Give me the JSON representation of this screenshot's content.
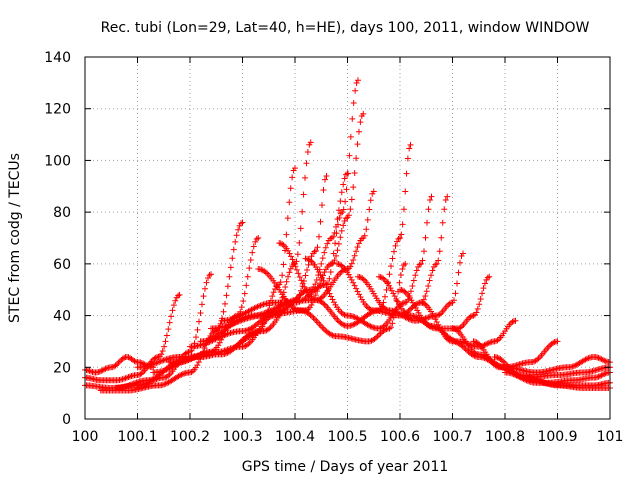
{
  "chart_data": {
    "type": "scatter",
    "title": "Rec. tubi (Lon=29, Lat=40, h=HE), days 100, 2011, window WINDOW",
    "xlabel": "GPS time / Days of year 2011",
    "ylabel": "STEC from codg / TECUs",
    "xlim": [
      100,
      101
    ],
    "ylim": [
      0,
      140
    ],
    "x_ticks": [
      "100",
      "100.1",
      "100.2",
      "100.3",
      "100.4",
      "100.5",
      "100.6",
      "100.7",
      "100.8",
      "100.9",
      "101"
    ],
    "y_ticks": [
      "0",
      "20",
      "40",
      "60",
      "80",
      "100",
      "120",
      "140"
    ],
    "marker": "+",
    "color": "#ff0000",
    "grid": true,
    "series": [
      {
        "x": [
          100.0,
          100.02,
          100.05,
          100.08,
          100.1,
          100.13
        ],
        "y": [
          19,
          18,
          20,
          24,
          22,
          20
        ]
      },
      {
        "x": [
          100.0,
          100.03,
          100.06,
          100.1,
          100.14,
          100.18
        ],
        "y": [
          16,
          15,
          15,
          17,
          24,
          48
        ]
      },
      {
        "x": [
          100.0,
          100.05,
          100.1,
          100.15,
          100.2,
          100.24
        ],
        "y": [
          13,
          12,
          13,
          16,
          26,
          56
        ]
      },
      {
        "x": [
          100.03,
          100.08,
          100.14,
          100.2,
          100.25,
          100.3
        ],
        "y": [
          11,
          11,
          13,
          18,
          34,
          76
        ]
      },
      {
        "x": [
          100.06,
          100.12,
          100.18,
          100.24,
          100.29,
          100.33
        ],
        "y": [
          12,
          15,
          22,
          26,
          40,
          70
        ]
      },
      {
        "x": [
          100.1,
          100.18,
          100.26,
          100.33,
          100.37,
          100.4
        ],
        "y": [
          20,
          24,
          25,
          34,
          52,
          97
        ]
      },
      {
        "x": [
          100.13,
          100.22,
          100.3,
          100.36,
          100.4,
          100.43
        ],
        "y": [
          18,
          24,
          28,
          40,
          60,
          107
        ]
      },
      {
        "x": [
          100.16,
          100.26,
          100.34,
          100.4,
          100.44,
          100.46
        ],
        "y": [
          22,
          26,
          34,
          46,
          65,
          94
        ]
      },
      {
        "x": [
          100.2,
          100.3,
          100.37,
          100.43,
          100.47,
          100.5
        ],
        "y": [
          28,
          34,
          42,
          50,
          70,
          95
        ]
      },
      {
        "x": [
          100.22,
          100.32,
          100.4,
          100.46,
          100.49,
          100.52
        ],
        "y": [
          30,
          40,
          45,
          52,
          80,
          131
        ]
      },
      {
        "x": [
          100.24,
          100.34,
          100.42,
          100.47,
          100.5,
          100.53
        ],
        "y": [
          35,
          40,
          42,
          60,
          78,
          118
        ]
      },
      {
        "x": [
          100.26,
          100.36,
          100.44,
          100.5,
          100.53,
          100.55
        ],
        "y": [
          38,
          45,
          46,
          58,
          70,
          88
        ]
      },
      {
        "x": [
          100.37,
          100.44,
          100.5,
          100.56,
          100.6,
          100.62
        ],
        "y": [
          68,
          46,
          36,
          42,
          70,
          106
        ]
      },
      {
        "x": [
          100.42,
          100.5,
          100.56,
          100.61,
          100.64,
          100.66
        ],
        "y": [
          62,
          40,
          35,
          45,
          60,
          86
        ]
      },
      {
        "x": [
          100.33,
          100.41,
          100.48,
          100.54,
          100.58,
          100.61
        ],
        "y": [
          58,
          42,
          32,
          30,
          35,
          60
        ]
      },
      {
        "x": [
          100.48,
          100.55,
          100.6,
          100.64,
          100.67,
          100.69
        ],
        "y": [
          60,
          42,
          40,
          45,
          60,
          86
        ]
      },
      {
        "x": [
          100.52,
          100.58,
          100.63,
          100.67,
          100.7,
          100.72
        ],
        "y": [
          55,
          42,
          38,
          40,
          45,
          64
        ]
      },
      {
        "x": [
          100.56,
          100.62,
          100.67,
          100.71,
          100.74,
          100.77
        ],
        "y": [
          55,
          40,
          35,
          35,
          40,
          55
        ]
      },
      {
        "x": [
          100.6,
          100.66,
          100.71,
          100.75,
          100.78,
          100.82
        ],
        "y": [
          50,
          36,
          30,
          28,
          30,
          38
        ]
      },
      {
        "x": [
          100.64,
          100.7,
          100.75,
          100.8,
          100.85,
          100.9
        ],
        "y": [
          45,
          30,
          24,
          20,
          22,
          30
        ]
      },
      {
        "x": [
          100.7,
          100.75,
          100.8,
          100.86,
          100.92,
          100.97,
          101.0
        ],
        "y": [
          35,
          25,
          20,
          18,
          20,
          24,
          22
        ]
      },
      {
        "x": [
          100.74,
          100.79,
          100.84,
          100.9,
          100.95,
          101.0
        ],
        "y": [
          30,
          20,
          16,
          17,
          18,
          20
        ]
      },
      {
        "x": [
          100.78,
          100.83,
          100.88,
          100.93,
          100.97,
          101.0
        ],
        "y": [
          24,
          17,
          14,
          15,
          16,
          18
        ]
      },
      {
        "x": [
          100.8,
          100.86,
          100.92,
          100.97,
          101.0
        ],
        "y": [
          18,
          14,
          13,
          13,
          14
        ]
      },
      {
        "x": [
          100.84,
          100.9,
          100.95,
          101.0
        ],
        "y": [
          16,
          13,
          12,
          12
        ]
      }
    ]
  }
}
